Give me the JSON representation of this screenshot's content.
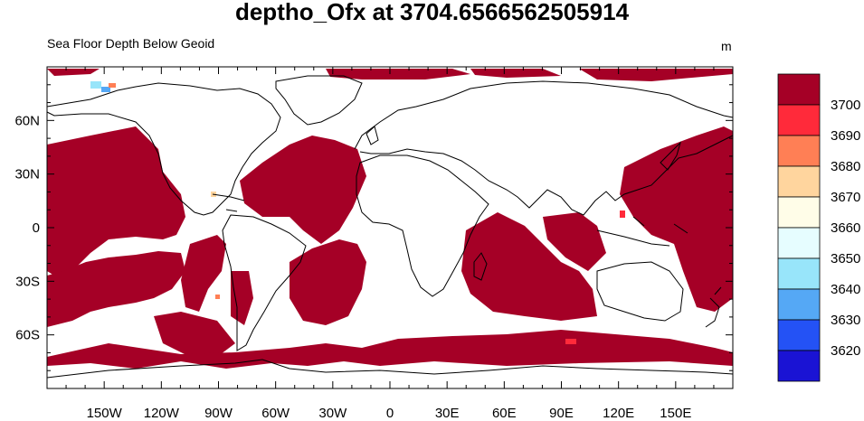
{
  "title": "deptho_Ofx at 3704.6566562505914",
  "subtitle": "Sea Floor Depth Below Geoid",
  "units": "m",
  "map": {
    "projection": "cylindrical-equidistant",
    "lon_range": [
      -180,
      180
    ],
    "lat_range": [
      -90,
      90
    ],
    "x_tick_labels": [
      "150W",
      "120W",
      "90W",
      "60W",
      "30W",
      "0",
      "30E",
      "60E",
      "90E",
      "120E",
      "150E"
    ],
    "x_tick_values": [
      -150,
      -120,
      -90,
      -60,
      -30,
      0,
      30,
      60,
      90,
      120,
      150
    ],
    "y_tick_labels": [
      "60N",
      "30N",
      "0",
      "30S",
      "60S"
    ],
    "y_tick_values": [
      60,
      30,
      0,
      -30,
      -60
    ],
    "fill_color": "#a50026",
    "land_and_shallow_color": "#ffffff"
  },
  "colorbar": {
    "labels": [
      "3700",
      "3690",
      "3680",
      "3670",
      "3660",
      "3650",
      "3640",
      "3630",
      "3620"
    ],
    "colors": [
      "#a50026",
      "#ff2a3a",
      "#ff7f55",
      "#ffd59e",
      "#fffde8",
      "#e6fdff",
      "#98e5fa",
      "#55a8f5",
      "#2452f5",
      "#1a13d4"
    ]
  }
}
